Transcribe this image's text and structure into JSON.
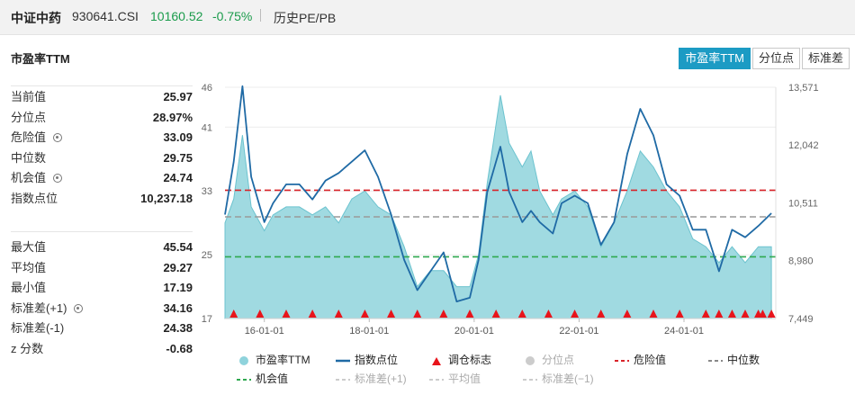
{
  "header": {
    "name": "中证中药",
    "code": "930641.CSI",
    "price": "10160.52",
    "change": "-0.75%",
    "view": "历史PE/PB"
  },
  "panel": {
    "title": "市盈率TTM",
    "tabs": [
      "市盈率TTM",
      "分位点",
      "标准差"
    ],
    "active_tab": 0
  },
  "stats_top": [
    {
      "label": "当前值",
      "value": "25.97",
      "gear": false
    },
    {
      "label": "分位点",
      "value": "28.97%",
      "gear": false
    },
    {
      "label": "危险值",
      "value": "33.09",
      "gear": true
    },
    {
      "label": "中位数",
      "value": "29.75",
      "gear": false
    },
    {
      "label": "机会值",
      "value": "24.74",
      "gear": true
    },
    {
      "label": "指数点位",
      "value": "10,237.18",
      "gear": false
    }
  ],
  "stats_bottom": [
    {
      "label": "最大值",
      "value": "45.54",
      "gear": false
    },
    {
      "label": "平均值",
      "value": "29.27",
      "gear": false
    },
    {
      "label": "最小值",
      "value": "17.19",
      "gear": false
    },
    {
      "label": "标准差(+1)",
      "value": "34.16",
      "gear": true
    },
    {
      "label": "标准差(-1)",
      "value": "24.38",
      "gear": false
    },
    {
      "label": "z 分数",
      "value": "-0.68",
      "gear": false
    }
  ],
  "colors": {
    "pe_area": "#8fd3dc",
    "index_line": "#1f6aa5",
    "danger": "#d9242a",
    "median": "#999999",
    "opportunity": "#2ea84f",
    "marker": "#e8141b",
    "tab_active": "#1c9bc4"
  },
  "chart_data": {
    "type": "area",
    "x_ticks": [
      "16-01-01",
      "18-01-01",
      "20-01-01",
      "22-01-01",
      "24-01-01"
    ],
    "x_range": [
      "2015-04-01",
      "2025-10-01"
    ],
    "y_left": {
      "ticks": [
        "17",
        "25",
        "33",
        "41",
        "46"
      ],
      "range": [
        17,
        46
      ]
    },
    "y_right": {
      "ticks": [
        "7,449",
        "8,980",
        "10,511",
        "12,042",
        "13,571"
      ],
      "range": [
        7449,
        13571
      ]
    },
    "reference_lines": {
      "danger": 33.09,
      "median": 29.75,
      "opportunity": 24.74
    },
    "pe_series": {
      "name": "市盈率TTM",
      "x": [
        "2015-04",
        "2015-06",
        "2015-08",
        "2015-10",
        "2016-01",
        "2016-03",
        "2016-06",
        "2016-09",
        "2016-12",
        "2017-03",
        "2017-06",
        "2017-09",
        "2017-12",
        "2018-03",
        "2018-06",
        "2018-09",
        "2018-12",
        "2019-03",
        "2019-06",
        "2019-09",
        "2019-12",
        "2020-02",
        "2020-04",
        "2020-07",
        "2020-09",
        "2020-12",
        "2021-02",
        "2021-04",
        "2021-07",
        "2021-09",
        "2021-12",
        "2022-03",
        "2022-06",
        "2022-09",
        "2022-12",
        "2023-03",
        "2023-06",
        "2023-09",
        "2023-12",
        "2024-03",
        "2024-06",
        "2024-09",
        "2024-12",
        "2025-03",
        "2025-06",
        "2025-09"
      ],
      "y": [
        29,
        32,
        40,
        31,
        28,
        30,
        31,
        31,
        30,
        31,
        29,
        32,
        33,
        31,
        30,
        26,
        21,
        23,
        23,
        21,
        21,
        25,
        34,
        45,
        39,
        36,
        38,
        33,
        30,
        32,
        33,
        31,
        26,
        29,
        33,
        38,
        36,
        33,
        31,
        27,
        26,
        24,
        26,
        24,
        26,
        26
      ]
    },
    "index_series": {
      "name": "指数点位",
      "x": [
        "2015-04",
        "2015-06",
        "2015-08",
        "2015-10",
        "2016-01",
        "2016-03",
        "2016-06",
        "2016-09",
        "2016-12",
        "2017-03",
        "2017-06",
        "2017-09",
        "2017-12",
        "2018-03",
        "2018-06",
        "2018-09",
        "2018-12",
        "2019-03",
        "2019-06",
        "2019-09",
        "2019-12",
        "2020-02",
        "2020-04",
        "2020-07",
        "2020-09",
        "2020-12",
        "2021-02",
        "2021-04",
        "2021-07",
        "2021-09",
        "2021-12",
        "2022-03",
        "2022-06",
        "2022-09",
        "2022-12",
        "2023-03",
        "2023-06",
        "2023-09",
        "2023-12",
        "2024-03",
        "2024-06",
        "2024-09",
        "2024-12",
        "2025-03",
        "2025-06",
        "2025-09"
      ],
      "y": [
        10200,
        11600,
        13600,
        11200,
        10000,
        10500,
        11000,
        11000,
        10600,
        11100,
        11300,
        11600,
        11900,
        11200,
        10200,
        9000,
        8200,
        8700,
        9200,
        7900,
        8000,
        9000,
        10800,
        12000,
        10800,
        10000,
        10300,
        10000,
        9700,
        10500,
        10700,
        10500,
        9400,
        10000,
        11800,
        13000,
        12300,
        11000,
        10700,
        9800,
        9800,
        8700,
        9800,
        9600,
        9900,
        10237
      ]
    },
    "rebalance_markers": [
      "2015-06",
      "2015-12",
      "2016-06",
      "2016-12",
      "2017-06",
      "2017-12",
      "2018-06",
      "2018-12",
      "2019-06",
      "2019-12",
      "2020-06",
      "2020-12",
      "2021-06",
      "2021-12",
      "2022-06",
      "2022-12",
      "2023-06",
      "2023-12",
      "2024-06",
      "2024-09",
      "2024-12",
      "2025-03",
      "2025-06",
      "2025-07",
      "2025-09"
    ],
    "legend": [
      {
        "label": "市盈率TTM",
        "kind": "dot",
        "color": "#8fd3dc",
        "active": true
      },
      {
        "label": "指数点位",
        "kind": "line",
        "color": "#1f6aa5",
        "active": true
      },
      {
        "label": "调仓标志",
        "kind": "triangle",
        "color": "#e8141b",
        "active": true
      },
      {
        "label": "分位点",
        "kind": "dot",
        "color": "#cccccc",
        "active": false
      },
      {
        "label": "危险值",
        "kind": "dash",
        "color": "#d9242a",
        "active": true
      },
      {
        "label": "中位数",
        "kind": "dash",
        "color": "#888888",
        "active": true
      },
      {
        "label": "机会值",
        "kind": "dash",
        "color": "#2ea84f",
        "active": true
      },
      {
        "label": "标准差(+1)",
        "kind": "dash",
        "color": "#cccccc",
        "active": false
      },
      {
        "label": "平均值",
        "kind": "dash",
        "color": "#cccccc",
        "active": false
      },
      {
        "label": "标准差(−1)",
        "kind": "dash",
        "color": "#cccccc",
        "active": false
      }
    ]
  }
}
